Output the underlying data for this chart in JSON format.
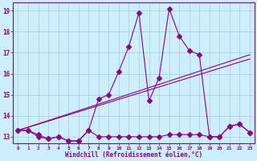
{
  "xlabel": "Windchill (Refroidissement éolien,°C)",
  "bg_color": "#cceeff",
  "line_color": "#880088",
  "grid_color": "#aacccc",
  "xlim": [
    -0.5,
    23.5
  ],
  "ylim": [
    12.7,
    19.4
  ],
  "xticks": [
    0,
    1,
    2,
    3,
    4,
    5,
    6,
    7,
    8,
    9,
    10,
    11,
    12,
    13,
    14,
    15,
    16,
    17,
    18,
    19,
    20,
    21,
    22,
    23
  ],
  "yticks": [
    13,
    14,
    15,
    16,
    17,
    18,
    19
  ],
  "series1_x": [
    0,
    1,
    2,
    3,
    4,
    5,
    6,
    7,
    8,
    9,
    10,
    11,
    12,
    13,
    14,
    15,
    16,
    17,
    18,
    19,
    20,
    21,
    22,
    23
  ],
  "series1_y": [
    13.3,
    13.3,
    13.1,
    12.9,
    13.0,
    12.8,
    12.8,
    13.3,
    14.8,
    15.0,
    16.1,
    17.3,
    18.9,
    14.7,
    15.8,
    19.1,
    17.8,
    17.1,
    16.9,
    13.0,
    13.0,
    13.5,
    13.6,
    13.2
  ],
  "series2_x": [
    0,
    1,
    2,
    3,
    4,
    5,
    6,
    7,
    8,
    9,
    10,
    11,
    12,
    13,
    14,
    15,
    16,
    17,
    18,
    19,
    20,
    21,
    22,
    23
  ],
  "series2_y": [
    13.3,
    13.3,
    13.0,
    12.9,
    13.0,
    12.8,
    12.8,
    13.3,
    13.0,
    13.0,
    13.0,
    13.0,
    13.0,
    13.0,
    13.0,
    13.1,
    13.1,
    13.1,
    13.1,
    13.0,
    13.0,
    13.5,
    13.6,
    13.2
  ],
  "trend1_x": [
    0,
    23
  ],
  "trend1_y": [
    13.3,
    16.7
  ],
  "trend2_x": [
    0,
    23
  ],
  "trend2_y": [
    13.3,
    16.9
  ]
}
